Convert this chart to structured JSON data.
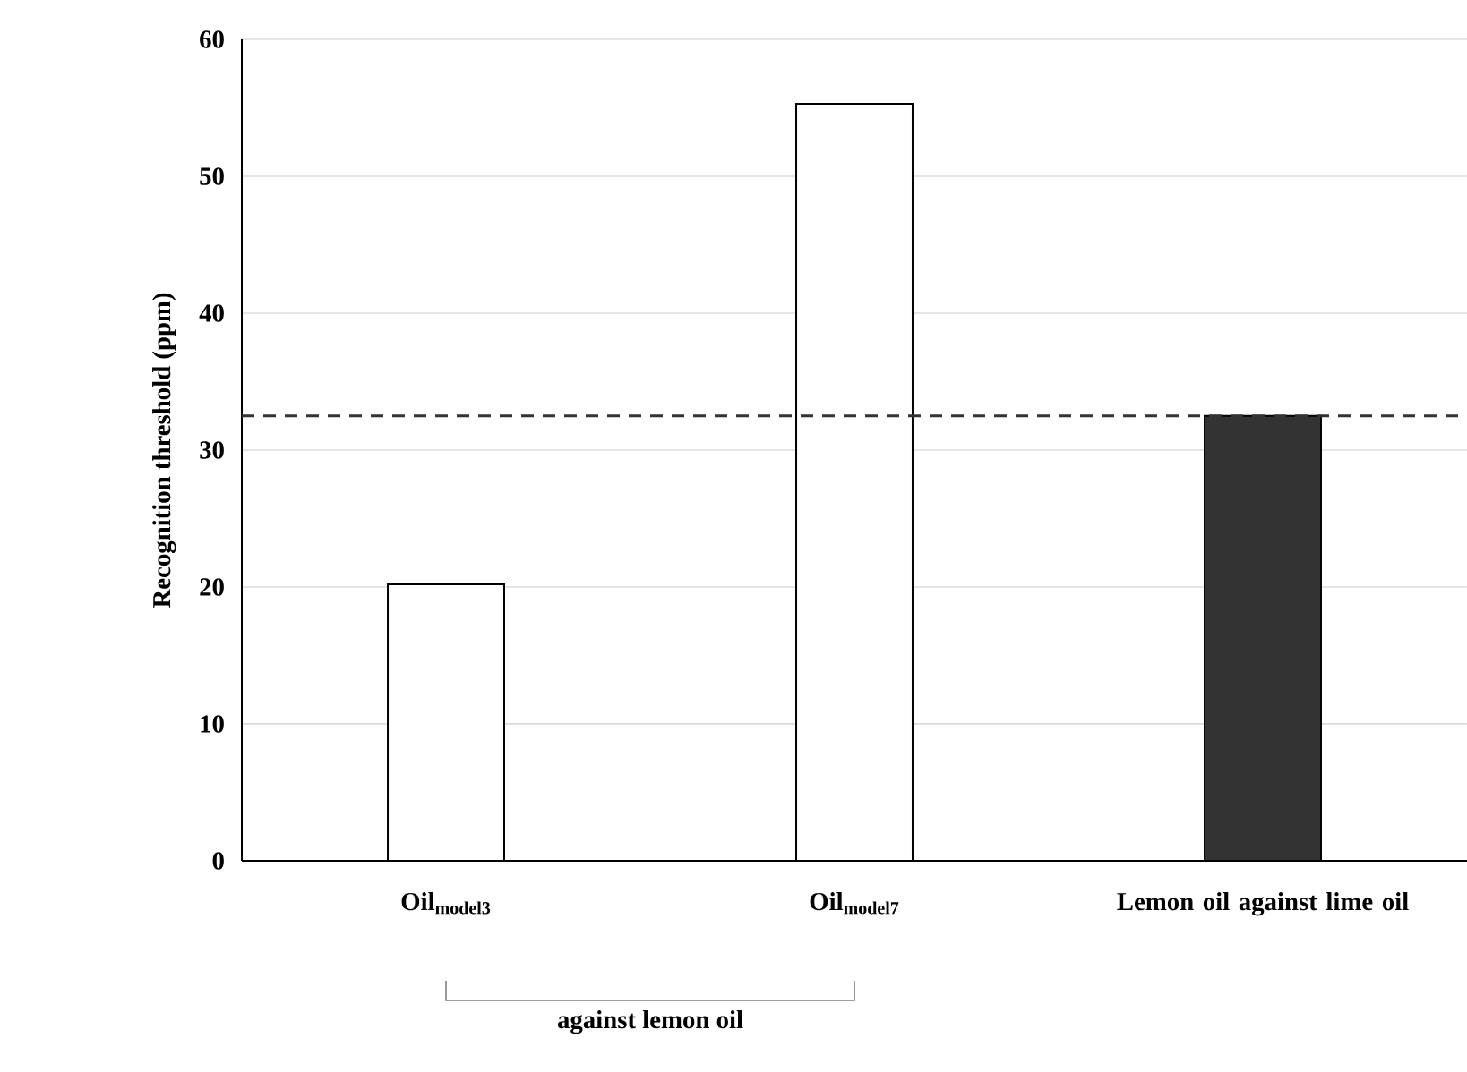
{
  "chart_data": {
    "type": "bar",
    "ylabel": "Recognition threshold  (ppm)",
    "categories": [
      "Oil$_{model3}$",
      "Oil$_{model7}$",
      "Lemon oil against lime oil"
    ],
    "values": [
      20.2,
      55.3,
      32.5
    ],
    "colors": [
      "#ffffff",
      "#ffffff",
      "#333333"
    ],
    "ylim": [
      0,
      60
    ],
    "yticks": [
      0,
      10,
      20,
      30,
      40,
      50,
      60
    ],
    "grid": "y",
    "ref_lines": [
      {
        "axis": "y",
        "value": 32.5,
        "line_style": "dashed",
        "color": "#333333"
      }
    ],
    "annotations": [
      "against lemon oil"
    ]
  }
}
